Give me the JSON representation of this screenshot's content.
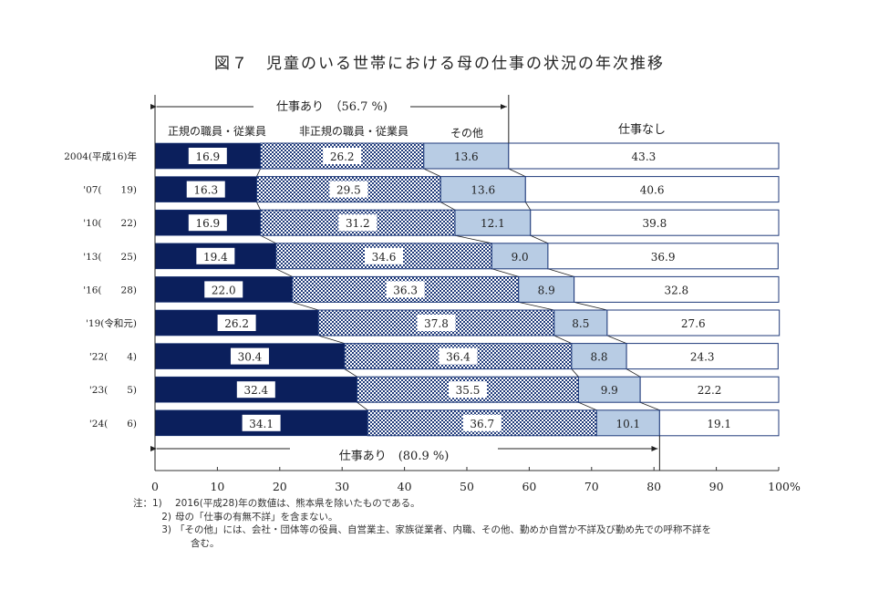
{
  "title": "図７　児童のいる世帯における母の仕事の状況の年次推移",
  "chart_data": {
    "type": "bar",
    "orientation": "horizontal-stacked-100",
    "title": "図７　児童のいる世帯における母の仕事の状況の年次推移",
    "categories": [
      "2004(平成16)年",
      "'07(　　19)",
      "'10(　　22)",
      "'13(　　25)",
      "'16(　　28)",
      "'19(令和元)",
      "'22(　　4)",
      "'23(　　5)",
      "'24(　　6)"
    ],
    "series": [
      {
        "name": "正規の職員・従業員",
        "values": [
          16.9,
          16.3,
          16.9,
          19.4,
          22.0,
          26.2,
          30.4,
          32.4,
          34.1
        ],
        "color": "#0b1f5c"
      },
      {
        "name": "非正規の職員・従業員",
        "values": [
          26.2,
          29.5,
          31.2,
          34.6,
          36.3,
          37.8,
          36.4,
          35.5,
          36.7
        ],
        "color": "#1f3a7a",
        "pattern": "checker"
      },
      {
        "name": "その他",
        "values": [
          13.6,
          13.6,
          12.1,
          9.0,
          8.9,
          8.5,
          8.8,
          9.9,
          10.1
        ],
        "color": "#b8cce4"
      },
      {
        "name": "仕事なし",
        "values": [
          43.3,
          40.6,
          39.8,
          36.9,
          32.8,
          27.6,
          24.3,
          22.2,
          19.1
        ],
        "color": "#ffffff"
      }
    ],
    "value_labels": [
      [
        "16.9",
        "26.2",
        "13.6",
        "43.3"
      ],
      [
        "16.3",
        "29.5",
        "13.6",
        "40.6"
      ],
      [
        "16.9",
        "31.2",
        "12.1",
        "39.8"
      ],
      [
        "19.4",
        "34.6",
        "9.0",
        "36.9"
      ],
      [
        "22.0",
        "36.3",
        "8.9",
        "32.8"
      ],
      [
        "26.2",
        "37.8",
        "8.5",
        "27.6"
      ],
      [
        "30.4",
        "36.4",
        "8.8",
        "24.3"
      ],
      [
        "32.4",
        "35.5",
        "9.9",
        "22.2"
      ],
      [
        "34.1",
        "36.7",
        "10.1",
        "19.1"
      ]
    ],
    "xlim": [
      0,
      100
    ],
    "xticks": [
      0,
      10,
      20,
      30,
      40,
      50,
      60,
      70,
      80,
      90,
      100
    ],
    "xtick_labels": [
      "0",
      "10",
      "20",
      "30",
      "40",
      "50",
      "60",
      "70",
      "80",
      "90",
      "100%"
    ],
    "annotations": {
      "top_bracket": {
        "label": "仕事あり　（56.7 %)",
        "value": 56.7
      },
      "bottom_bracket": {
        "label": "仕事あり　(80.9 %)",
        "value": 80.9
      }
    },
    "legend_headers": [
      "正規の職員・従業員",
      "非正規の職員・従業員",
      "その他",
      "仕事なし"
    ],
    "grid": false
  },
  "notes": {
    "n1_label": "注：1)",
    "n1": "2016(平成28)年の数値は、熊本県を除いたものである。",
    "n2_label": "2)",
    "n2": "母の「仕事の有無不詳」を含まない。",
    "n3_label": "3)",
    "n3": "「その他」には、会社・団体等の役員、自営業主、家族従業者、内職、その他、勤めか自営か不詳及び勤め先での呼称不詳を",
    "n3_cont": "含む。"
  }
}
